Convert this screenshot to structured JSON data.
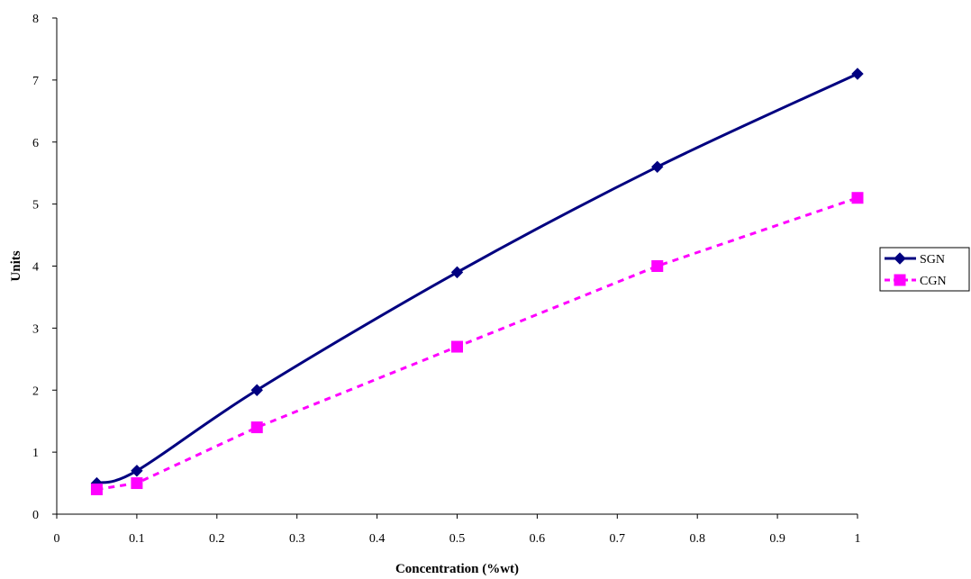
{
  "chart_data": {
    "type": "line",
    "title": "",
    "xlabel": "Concentration (%wt)",
    "ylabel": "Units",
    "xlim": [
      0,
      1
    ],
    "ylim": [
      0,
      8
    ],
    "xticks": [
      0,
      0.1,
      0.2,
      0.3,
      0.4,
      0.5,
      0.6,
      0.7,
      0.8,
      0.9,
      1
    ],
    "yticks": [
      0,
      1,
      2,
      3,
      4,
      5,
      6,
      7,
      8
    ],
    "grid": false,
    "legend_position": "right",
    "series": [
      {
        "name": "SGN",
        "color": "#000080",
        "line_style": "solid",
        "smoothed": true,
        "marker": "diamond",
        "x": [
          0.05,
          0.1,
          0.25,
          0.5,
          0.75,
          1
        ],
        "y": [
          0.5,
          0.7,
          2.0,
          3.9,
          5.6,
          7.1
        ]
      },
      {
        "name": "CGN",
        "color": "#FF00FF",
        "line_style": "dashed",
        "smoothed": false,
        "marker": "square",
        "x": [
          0.05,
          0.1,
          0.25,
          0.5,
          0.75,
          1
        ],
        "y": [
          0.4,
          0.5,
          1.4,
          2.7,
          4.0,
          5.1
        ]
      }
    ]
  }
}
